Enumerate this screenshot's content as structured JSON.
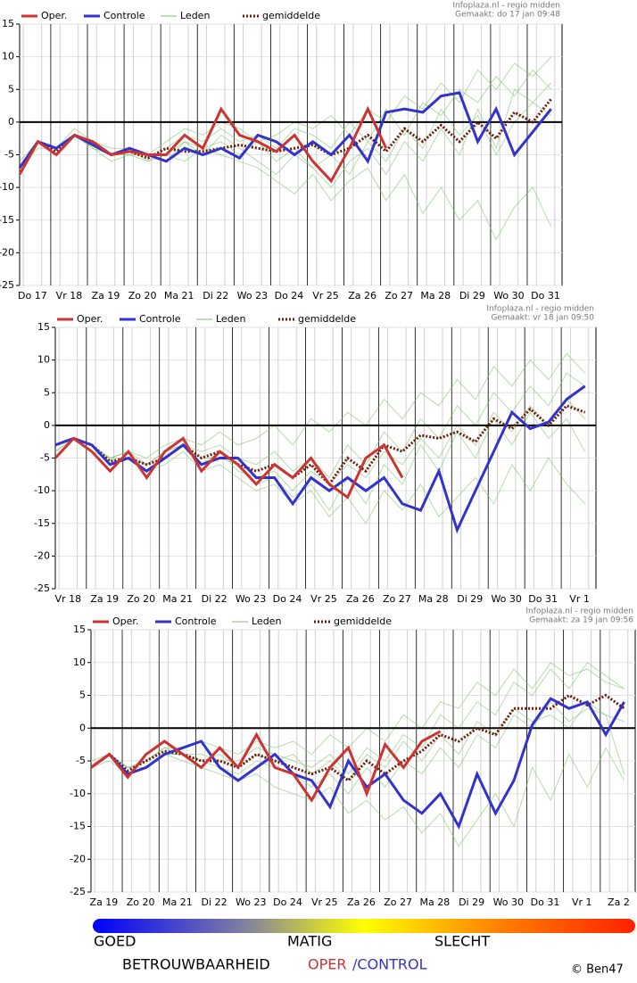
{
  "chart_data": [
    {
      "type": "line",
      "source": "Infoplaza.nl - regio midden",
      "created": "Gemaakt: do 17 jan 09:48",
      "x": [
        0,
        0.5,
        1,
        1.5,
        2,
        2.5,
        3,
        3.5,
        4,
        4.5,
        5,
        5.5,
        6,
        6.5,
        7,
        7.5,
        8,
        8.5,
        9,
        9.5,
        10,
        10.5,
        11,
        11.5,
        12,
        12.5,
        13,
        13.5,
        14,
        14.5
      ],
      "xlim": [
        0,
        14.8
      ],
      "xticks": [
        {
          "value": 0.35,
          "label": "Do 17"
        },
        {
          "value": 1.35,
          "label": "Vr 18"
        },
        {
          "value": 2.35,
          "label": "Za 19"
        },
        {
          "value": 3.35,
          "label": "Zo 20"
        },
        {
          "value": 4.35,
          "label": "Ma 21"
        },
        {
          "value": 5.35,
          "label": "Di 22"
        },
        {
          "value": 6.35,
          "label": "Wo 23"
        },
        {
          "value": 7.35,
          "label": "Do 24"
        },
        {
          "value": 8.35,
          "label": "Vr 25"
        },
        {
          "value": 9.35,
          "label": "Za 26"
        },
        {
          "value": 10.35,
          "label": "Zo 27"
        },
        {
          "value": 11.35,
          "label": "Ma 28"
        },
        {
          "value": 12.35,
          "label": "Di 29"
        },
        {
          "value": 13.35,
          "label": "Wo 30"
        },
        {
          "value": 14.35,
          "label": "Do 31"
        }
      ],
      "ylim": [
        -25,
        15
      ],
      "yticks": [
        15,
        10,
        5,
        0,
        -5,
        -10,
        -15,
        -20,
        -25
      ],
      "members": {
        "name": "Leden",
        "color": "#7cc06a",
        "series": [
          [
            -7,
            -3,
            -4,
            -2,
            -3,
            -5,
            -4,
            -5,
            -5,
            -3,
            -5,
            -2,
            -4,
            -6,
            -8,
            -5,
            -7,
            -10,
            -6,
            -4,
            -8,
            -3,
            -6,
            -1,
            -5,
            2,
            -4,
            5,
            3,
            6
          ],
          [
            -6,
            -3,
            -5,
            -2,
            -4,
            -6,
            -5,
            -6,
            -4,
            -2,
            -3,
            -1,
            -3,
            -2,
            -4,
            -1,
            -2,
            -4,
            0,
            -3,
            2,
            -2,
            3,
            1,
            5,
            3,
            7,
            4,
            8,
            5
          ],
          [
            -7,
            -4,
            -4,
            -1,
            -3,
            -4,
            -4,
            -6,
            -5,
            -6,
            -4,
            -5,
            -6,
            -7,
            -9,
            -11,
            -8,
            -12,
            -9,
            -7,
            -12,
            -8,
            -14,
            -10,
            -15,
            -12,
            -18,
            -13,
            -10,
            -16
          ],
          [
            -8,
            -3,
            -5,
            -2,
            -3,
            -5,
            -5,
            -5,
            -3,
            -1,
            -2,
            0,
            -1,
            -3,
            -2,
            0,
            -1,
            1,
            -2,
            2,
            0,
            4,
            2,
            6,
            3,
            8,
            5,
            9,
            7,
            10
          ],
          [
            -7,
            -3,
            -4,
            -2,
            -4,
            -5,
            -4,
            -5,
            -6,
            -3,
            -4,
            -3,
            -5,
            -3,
            -6,
            -4,
            -7,
            -5,
            -8,
            -3,
            -6,
            -1,
            -4,
            2,
            -2,
            1,
            -5,
            0,
            3,
            1
          ]
        ]
      },
      "series": [
        {
          "name": "Oper.",
          "color": "#cc3333",
          "values": [
            -8,
            -3,
            -5,
            -2,
            -3,
            -5,
            -4.5,
            -5,
            -5,
            -2,
            -4,
            2,
            -2,
            -3,
            -4.5,
            -2,
            -6,
            -9,
            -4,
            2,
            -4,
            null,
            null,
            null,
            null,
            null,
            null,
            null,
            null,
            null
          ]
        },
        {
          "name": "Controle",
          "color": "#3333cc",
          "values": [
            -7,
            -3,
            -4,
            -2,
            -3.5,
            -5,
            -4,
            -5,
            -6,
            -4,
            -5,
            -4,
            -5.5,
            -2,
            -3,
            -5,
            -3,
            -5,
            -2,
            -6,
            1.5,
            2,
            1.5,
            4,
            4.5,
            -3,
            2,
            -5,
            -1.5,
            2
          ]
        },
        {
          "name": "gemiddelde",
          "color": "#6b1a0a",
          "values": [
            -7,
            -3,
            -4.5,
            -2,
            -3.5,
            -5,
            -4.5,
            -5.5,
            -4,
            -4.5,
            -4.5,
            -4,
            -3.5,
            -4,
            -4.5,
            -4,
            -3.5,
            -5,
            -4,
            -2,
            -4.5,
            -1,
            -3,
            -0.5,
            -3,
            0,
            -2.5,
            1.5,
            0,
            3.5
          ]
        }
      ]
    },
    {
      "type": "line",
      "source": "Infoplaza.nl - regio midden",
      "created": "Gemaakt: vr 18 jan 09:50",
      "x": [
        0,
        0.5,
        1,
        1.5,
        2,
        2.5,
        3,
        3.5,
        4,
        4.5,
        5,
        5.5,
        6,
        6.5,
        7,
        7.5,
        8,
        8.5,
        9,
        9.5,
        10,
        10.5,
        11,
        11.5,
        12,
        12.5,
        13,
        13.5,
        14,
        14.5
      ],
      "xlim": [
        0,
        14.8
      ],
      "xticks": [
        {
          "value": 0.35,
          "label": "Vr 18"
        },
        {
          "value": 1.35,
          "label": "Za 19"
        },
        {
          "value": 2.35,
          "label": "Zo 20"
        },
        {
          "value": 3.35,
          "label": "Ma 21"
        },
        {
          "value": 4.35,
          "label": "Di 22"
        },
        {
          "value": 5.35,
          "label": "Wo 23"
        },
        {
          "value": 6.35,
          "label": "Do 24"
        },
        {
          "value": 7.35,
          "label": "Vr 25"
        },
        {
          "value": 8.35,
          "label": "Za 26"
        },
        {
          "value": 9.35,
          "label": "Zo 27"
        },
        {
          "value": 10.35,
          "label": "Ma 28"
        },
        {
          "value": 11.35,
          "label": "Di 29"
        },
        {
          "value": 12.35,
          "label": "Wo 30"
        },
        {
          "value": 13.35,
          "label": "Do 31"
        },
        {
          "value": 14.35,
          "label": "Vr 1"
        }
      ],
      "ylim": [
        -25,
        15
      ],
      "yticks": [
        15,
        10,
        5,
        0,
        -5,
        -10,
        -15,
        -20,
        -25
      ],
      "members": {
        "name": "Leden",
        "color": "#7cc06a",
        "series": [
          [
            -3,
            -2,
            -3,
            -5,
            -4,
            -6,
            -4,
            -3,
            -4,
            -3,
            -5,
            -6,
            -4,
            -7,
            -5,
            -8,
            -3,
            -6,
            -1,
            -4,
            1,
            -2,
            3,
            0,
            5,
            2,
            6,
            3,
            8,
            6
          ],
          [
            -4,
            -2,
            -3,
            -6,
            -5,
            -7,
            -6,
            -4,
            -7,
            -6,
            -8,
            -10,
            -9,
            -12,
            -10,
            -14,
            -11,
            -15,
            -10,
            -13,
            -9,
            -14,
            -11,
            -8,
            -12,
            -6,
            -10,
            -5,
            -9,
            -12
          ],
          [
            -3,
            -2,
            -4,
            -5,
            -4,
            -5,
            -3,
            -2,
            -3,
            -1,
            -3,
            -2,
            0,
            -3,
            1,
            -1,
            2,
            0,
            4,
            1,
            5,
            3,
            7,
            4,
            9,
            6,
            10,
            7,
            11,
            8
          ],
          [
            -3,
            -2,
            -3,
            -6,
            -5,
            -6,
            -5,
            -3,
            -6,
            -4,
            -7,
            -8,
            -7,
            -10,
            -7,
            -9,
            -6,
            -8,
            -4,
            -6,
            -2,
            -5,
            0,
            -3,
            2,
            -1,
            3,
            0,
            4,
            1
          ],
          [
            -4,
            -2,
            -3,
            -5,
            -5,
            -6,
            -4,
            -3,
            -5,
            -5,
            -6,
            -9,
            -8,
            -11,
            -9,
            -13,
            -8,
            -12,
            -6,
            -9,
            -3,
            -7,
            -1,
            -5,
            1,
            -3,
            2,
            -2,
            1,
            -4
          ]
        ]
      },
      "series": [
        {
          "name": "Oper.",
          "color": "#cc3333",
          "values": [
            -5,
            -2,
            -4,
            -7,
            -4,
            -8,
            -4,
            -2,
            -7,
            -4,
            -6,
            -9,
            -6,
            -8,
            -5,
            -9,
            -11,
            -5,
            -3,
            -8,
            null,
            null,
            null,
            null,
            null,
            null,
            null,
            null,
            null,
            null
          ]
        },
        {
          "name": "Controle",
          "color": "#3333cc",
          "values": [
            -3,
            -2,
            -3,
            -6,
            -5,
            -7,
            -5,
            -3,
            -6,
            -5,
            -5,
            -8,
            -8,
            -12,
            -8,
            -10,
            -8,
            -10,
            -8,
            -12,
            -13,
            -7,
            -16,
            -10,
            -4,
            2,
            -0.5,
            0.5,
            4,
            6
          ]
        },
        {
          "name": "gemiddelde",
          "color": "#6b1a0a",
          "values": [
            -3,
            -2,
            -3,
            -5.5,
            -5,
            -6,
            -5,
            -3,
            -5,
            -4,
            -6,
            -7,
            -6,
            -8,
            -6,
            -9,
            -5,
            -7,
            -3,
            -4,
            -1.5,
            -2,
            -1,
            -2.5,
            1,
            -0.5,
            2.5,
            0,
            3,
            2
          ]
        }
      ]
    },
    {
      "type": "line",
      "source": "Infoplaza.nl - regio midden",
      "created": "Gemaakt: za 19 jan 09:56",
      "x": [
        0,
        0.5,
        1,
        1.5,
        2,
        2.5,
        3,
        3.5,
        4,
        4.5,
        5,
        5.5,
        6,
        6.5,
        7,
        7.5,
        8,
        8.5,
        9,
        9.5,
        10,
        10.5,
        11,
        11.5,
        12,
        12.5,
        13,
        13.5,
        14,
        14.5
      ],
      "xlim": [
        0,
        14.8
      ],
      "xticks": [
        {
          "value": 0.35,
          "label": "Za 19"
        },
        {
          "value": 1.35,
          "label": "Zo 20"
        },
        {
          "value": 2.35,
          "label": "Ma 21"
        },
        {
          "value": 3.35,
          "label": "Di 22"
        },
        {
          "value": 4.35,
          "label": "Wo 23"
        },
        {
          "value": 5.35,
          "label": "Do 24"
        },
        {
          "value": 6.35,
          "label": "Vr 25"
        },
        {
          "value": 7.35,
          "label": "Za 26"
        },
        {
          "value": 8.35,
          "label": "Zo 27"
        },
        {
          "value": 9.35,
          "label": "Ma 28"
        },
        {
          "value": 10.35,
          "label": "Di 29"
        },
        {
          "value": 11.35,
          "label": "Wo 30"
        },
        {
          "value": 12.35,
          "label": "Do 31"
        },
        {
          "value": 13.35,
          "label": "Vr 1"
        },
        {
          "value": 14.35,
          "label": "Za 2"
        }
      ],
      "ylim": [
        -25,
        15
      ],
      "yticks": [
        15,
        10,
        5,
        0,
        -5,
        -10,
        -15,
        -20,
        -25
      ],
      "members": {
        "name": "Leden",
        "color": "#7cc06a",
        "series": [
          [
            -6,
            -4,
            -6,
            -5,
            -3,
            -4,
            -4,
            -5,
            -5,
            -3,
            -4,
            -5,
            -6,
            -4,
            -7,
            -3,
            -5,
            -1,
            -3,
            2,
            0,
            4,
            2,
            7,
            5,
            9,
            6,
            10,
            8,
            6
          ],
          [
            -6,
            -5,
            -7,
            -6,
            -4,
            -5,
            -6,
            -7,
            -8,
            -7,
            -9,
            -10,
            -11,
            -9,
            -13,
            -11,
            -14,
            -12,
            -16,
            -13,
            -18,
            -14,
            -10,
            -15,
            -6,
            -11,
            -4,
            -9,
            -3,
            -8
          ],
          [
            -5,
            -4,
            -6,
            -5,
            -3,
            -3,
            -2,
            -3,
            -4,
            -2,
            -3,
            -2,
            -4,
            -1,
            -3,
            0,
            -2,
            2,
            0,
            4,
            3,
            7,
            5,
            9,
            6,
            10,
            8,
            9,
            7,
            6
          ],
          [
            -6,
            -4,
            -7,
            -6,
            -4,
            -4,
            -5,
            -6,
            -7,
            -5,
            -6,
            -7,
            -9,
            -7,
            -10,
            -6,
            -9,
            -5,
            -7,
            -3,
            -6,
            -1,
            -3,
            2,
            0,
            4,
            1,
            3,
            2,
            1
          ],
          [
            -6,
            -4,
            -6,
            -6,
            -4,
            -4,
            -5,
            -4,
            -6,
            -4,
            -5,
            -4,
            -7,
            -5,
            -8,
            -4,
            -6,
            -2,
            -5,
            -1,
            -4,
            1,
            -1,
            3,
            1,
            2,
            0,
            4,
            2,
            -7
          ]
        ]
      },
      "series": [
        {
          "name": "Oper.",
          "color": "#cc3333",
          "values": [
            -6,
            -4,
            -7.5,
            -4,
            -2,
            -4,
            -6,
            -3,
            -6,
            -1,
            -6,
            -7,
            -11,
            -6,
            -3,
            -10,
            -2.5,
            -6,
            -2,
            -0.5,
            null,
            null,
            null,
            null,
            null,
            null,
            null,
            null,
            null,
            null
          ]
        },
        {
          "name": "Controle",
          "color": "#3333cc",
          "values": [
            -6,
            -4,
            -7,
            -6,
            -4,
            -3,
            -2,
            -6,
            -8,
            -6,
            -4,
            -7,
            -8,
            -12,
            -5,
            -9,
            -7,
            -11,
            -13,
            -10,
            -15,
            -7,
            -13,
            -8,
            0.5,
            4.5,
            3,
            4,
            -1,
            4
          ]
        },
        {
          "name": "gemiddelde",
          "color": "#6b1a0a",
          "values": [
            -6,
            -4,
            -6.5,
            -5,
            -3.5,
            -4,
            -5,
            -5,
            -6,
            -4,
            -5,
            -6,
            -7,
            -6,
            -8,
            -5,
            -7,
            -5,
            -3.5,
            -1,
            -2,
            0,
            -1,
            3,
            3,
            3,
            5,
            3.5,
            5,
            3
          ]
        }
      ]
    }
  ],
  "reliability": {
    "levels": [
      "GOED",
      "MATIG",
      "SLECHT"
    ],
    "title": "BETROUWBAARHEID",
    "oper": "OPER",
    "control": "/CONTROL"
  },
  "credit": "© Ben47"
}
